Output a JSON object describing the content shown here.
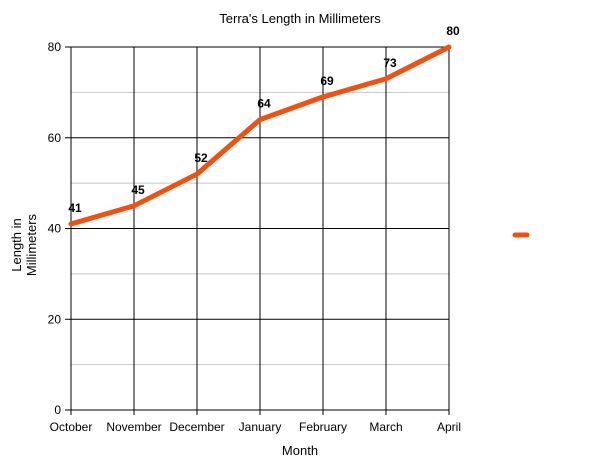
{
  "chart_data": {
    "type": "line",
    "title": "Terra's Length in Millimeters",
    "xlabel": "Month",
    "ylabel_lines": [
      "Length in",
      "Millimeters"
    ],
    "categories": [
      "October",
      "November",
      "December",
      "January",
      "February",
      "March",
      "April"
    ],
    "series": [
      {
        "values": [
          41,
          45,
          52,
          64,
          69,
          73,
          80
        ],
        "color": "#f2500f"
      }
    ],
    "ylim": [
      0,
      80
    ],
    "yticks": [
      0,
      20,
      40,
      60,
      80
    ],
    "minor_gridlines": [
      10,
      30,
      50,
      70
    ],
    "grid": true,
    "data_labels": true,
    "legend": {
      "position": "right",
      "entries": 1
    }
  }
}
